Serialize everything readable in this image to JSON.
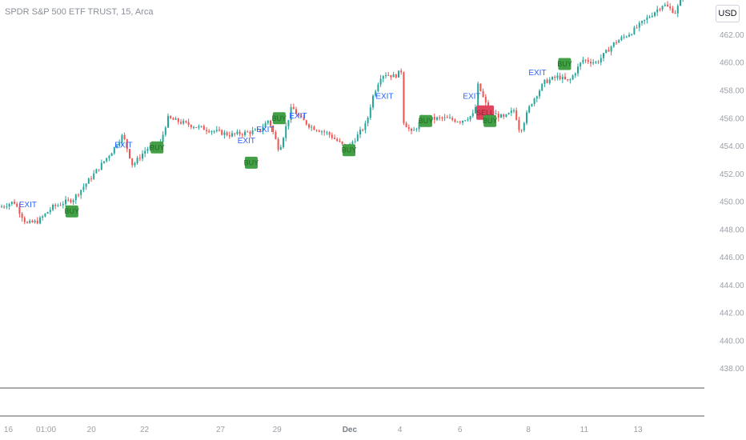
{
  "header": {
    "symbol_title": "SPDR S&P 500 ETF TRUST, 15, Arca",
    "currency_label": "USD"
  },
  "colors": {
    "up_candle": "#26a69a",
    "down_candle": "#ef5350",
    "buy_box": "#43a047",
    "buy_text": "#1e6b22",
    "sell_box": "#e0455e",
    "sell_text": "#8a1d2d",
    "exit_text": "#2962ff",
    "axis_text": "#9aa0a8"
  },
  "chart_data": {
    "type": "candlestick",
    "y_axis": {
      "labels": [
        "462.00",
        "460.00",
        "458.00",
        "456.00",
        "454.00",
        "452.00",
        "450.00",
        "448.00",
        "446.00",
        "444.00",
        "442.00",
        "440.00",
        "438.00"
      ],
      "values": [
        462,
        460,
        458,
        456,
        454,
        452,
        450,
        448,
        446,
        444,
        442,
        440,
        438
      ],
      "ylim": [
        436.6,
        464.5
      ]
    },
    "x_axis": {
      "ticks": [
        {
          "label": "16",
          "pos": 0.012,
          "bold": false
        },
        {
          "label": "01:00",
          "pos": 0.066,
          "bold": false
        },
        {
          "label": "20",
          "pos": 0.131,
          "bold": false
        },
        {
          "label": "22",
          "pos": 0.207,
          "bold": false
        },
        {
          "label": "27",
          "pos": 0.316,
          "bold": false
        },
        {
          "label": "29",
          "pos": 0.397,
          "bold": false
        },
        {
          "label": "Dec",
          "pos": 0.501,
          "bold": true
        },
        {
          "label": "4",
          "pos": 0.573,
          "bold": false
        },
        {
          "label": "6",
          "pos": 0.659,
          "bold": false
        },
        {
          "label": "8",
          "pos": 0.757,
          "bold": false
        },
        {
          "label": "11",
          "pos": 0.837,
          "bold": false
        },
        {
          "label": "13",
          "pos": 0.914,
          "bold": false
        }
      ]
    },
    "price_path": [
      [
        0.0,
        449.6
      ],
      [
        0.02,
        450.0
      ],
      [
        0.038,
        448.4
      ],
      [
        0.055,
        448.6
      ],
      [
        0.075,
        449.6
      ],
      [
        0.105,
        450.2
      ],
      [
        0.13,
        451.7
      ],
      [
        0.16,
        453.6
      ],
      [
        0.176,
        454.8
      ],
      [
        0.19,
        452.6
      ],
      [
        0.21,
        453.8
      ],
      [
        0.23,
        454.2
      ],
      [
        0.24,
        456.0
      ],
      [
        0.28,
        455.4
      ],
      [
        0.33,
        454.8
      ],
      [
        0.372,
        455.1
      ],
      [
        0.385,
        455.9
      ],
      [
        0.4,
        453.7
      ],
      [
        0.418,
        456.8
      ],
      [
        0.43,
        456.0
      ],
      [
        0.445,
        455.4
      ],
      [
        0.47,
        454.9
      ],
      [
        0.497,
        453.8
      ],
      [
        0.51,
        454.6
      ],
      [
        0.525,
        455.6
      ],
      [
        0.533,
        457.4
      ],
      [
        0.545,
        459.0
      ],
      [
        0.552,
        459.2
      ],
      [
        0.565,
        459.0
      ],
      [
        0.575,
        459.4
      ],
      [
        0.578,
        455.8
      ],
      [
        0.59,
        454.9
      ],
      [
        0.605,
        455.9
      ],
      [
        0.635,
        456.0
      ],
      [
        0.66,
        455.8
      ],
      [
        0.68,
        456.3
      ],
      [
        0.685,
        458.4
      ],
      [
        0.7,
        456.5
      ],
      [
        0.722,
        456.0
      ],
      [
        0.737,
        456.6
      ],
      [
        0.745,
        455.0
      ],
      [
        0.76,
        457.0
      ],
      [
        0.78,
        458.6
      ],
      [
        0.8,
        459.0
      ],
      [
        0.815,
        458.6
      ],
      [
        0.835,
        460.2
      ],
      [
        0.855,
        460.0
      ],
      [
        0.88,
        461.4
      ],
      [
        0.905,
        462.2
      ],
      [
        0.93,
        463.3
      ],
      [
        0.95,
        464.2
      ],
      [
        0.968,
        463.6
      ],
      [
        0.978,
        464.9
      ]
    ],
    "signals": [
      {
        "type": "EXIT",
        "x": 0.04,
        "y": 449.6
      },
      {
        "type": "BUY",
        "x": 0.103,
        "y": 449.3
      },
      {
        "type": "EXIT",
        "x": 0.177,
        "y": 453.9
      },
      {
        "type": "BUY",
        "x": 0.225,
        "y": 453.9
      },
      {
        "type": "EXIT",
        "x": 0.353,
        "y": 454.2
      },
      {
        "type": "BUY",
        "x": 0.36,
        "y": 452.8
      },
      {
        "type": "EXIT",
        "x": 0.38,
        "y": 455.0
      },
      {
        "type": "BUY",
        "x": 0.4,
        "y": 456.0
      },
      {
        "type": "EXIT",
        "x": 0.427,
        "y": 456.0
      },
      {
        "type": "BUY",
        "x": 0.5,
        "y": 453.7
      },
      {
        "type": "EXIT",
        "x": 0.551,
        "y": 457.4
      },
      {
        "type": "BUY",
        "x": 0.61,
        "y": 455.8
      },
      {
        "type": "EXIT",
        "x": 0.676,
        "y": 457.4
      },
      {
        "type": "SELL",
        "x": 0.695,
        "y": 456.4
      },
      {
        "type": "BUY",
        "x": 0.702,
        "y": 455.8
      },
      {
        "type": "EXIT",
        "x": 0.77,
        "y": 459.1
      },
      {
        "type": "BUY",
        "x": 0.809,
        "y": 459.9
      }
    ]
  }
}
